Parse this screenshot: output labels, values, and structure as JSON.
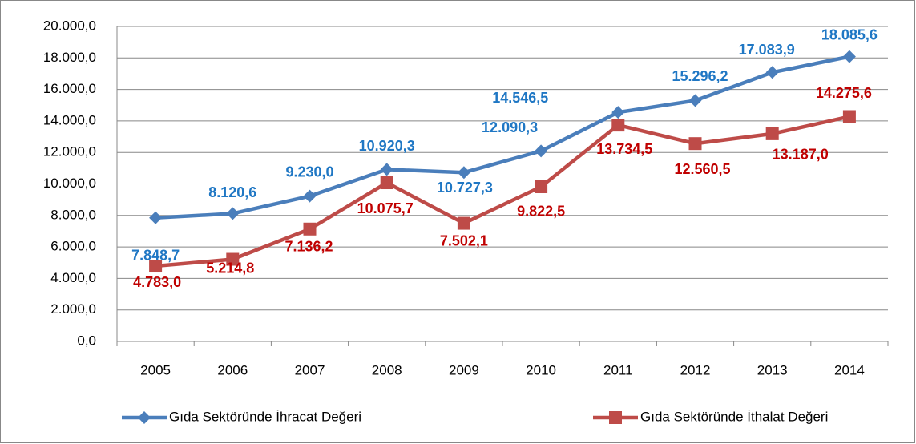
{
  "chart_data": {
    "type": "line",
    "categories": [
      "2005",
      "2006",
      "2007",
      "2008",
      "2009",
      "2010",
      "2011",
      "2012",
      "2013",
      "2014"
    ],
    "series": [
      {
        "name": "Gıda Sektöründe İhracat Değeri",
        "color": "#4a7ebb",
        "values": [
          7848.7,
          8120.6,
          9230.0,
          10920.3,
          10727.3,
          12090.3,
          14546.5,
          15296.2,
          17083.9,
          18085.6
        ],
        "value_labels": [
          "7.848,7",
          "8.120,6",
          "9.230,0",
          "10.920,3",
          "10.727,3",
          "12.090,3",
          "14.546,5",
          "15.296,2",
          "17.083,9",
          "18.085,6"
        ]
      },
      {
        "name": "Gıda Sektöründe İthalat Değeri",
        "color": "#be4b48",
        "values": [
          4783.0,
          5214.8,
          7136.2,
          10075.7,
          7502.1,
          9822.5,
          13734.5,
          12560.5,
          13187.0,
          14275.6
        ],
        "value_labels": [
          "4.783,0",
          "5.214,8",
          "7.136,2",
          "10.075,7",
          "7.502,1",
          "9.822,5",
          "13.734,5",
          "12.560,5",
          "13.187,0",
          "14.275,6"
        ]
      }
    ],
    "ylim": [
      0,
      20000
    ],
    "yticks": [
      {
        "value": 0,
        "label": "0,0"
      },
      {
        "value": 2000,
        "label": "2.000,0"
      },
      {
        "value": 4000,
        "label": "4.000,0"
      },
      {
        "value": 6000,
        "label": "6.000,0"
      },
      {
        "value": 8000,
        "label": "8.000,0"
      },
      {
        "value": 10000,
        "label": "10.000,0"
      },
      {
        "value": 12000,
        "label": "12.000,0"
      },
      {
        "value": 14000,
        "label": "14.000,0"
      },
      {
        "value": 16000,
        "label": "16.000,0"
      },
      {
        "value": 18000,
        "label": "18.000,0"
      },
      {
        "value": 20000,
        "label": "20.000,0"
      }
    ],
    "grid": true,
    "legend": "bottom"
  }
}
